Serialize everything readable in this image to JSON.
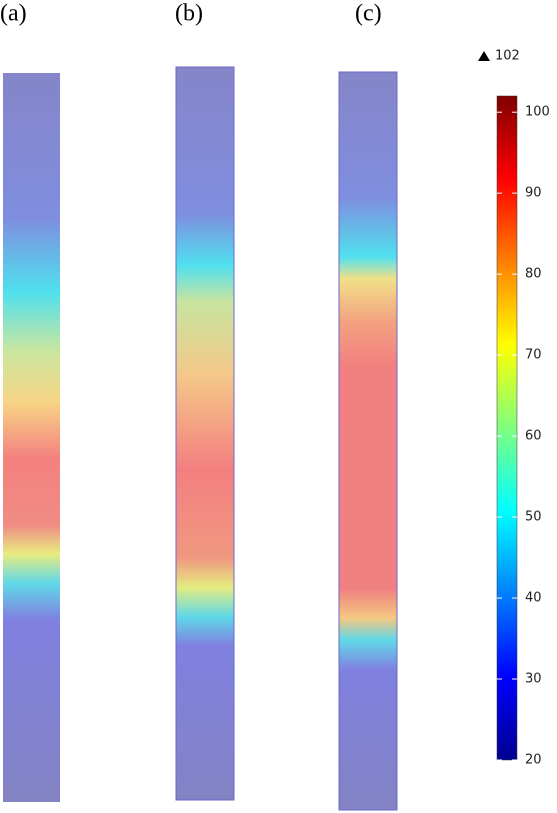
{
  "panels": [
    {
      "label": "(a)"
    },
    {
      "label": "(b)"
    },
    {
      "label": "(c)"
    }
  ],
  "colorbar": {
    "max_label": "102",
    "range": [
      20,
      102
    ],
    "ticks": [
      20,
      30,
      40,
      50,
      60,
      70,
      80,
      90,
      100
    ]
  }
}
